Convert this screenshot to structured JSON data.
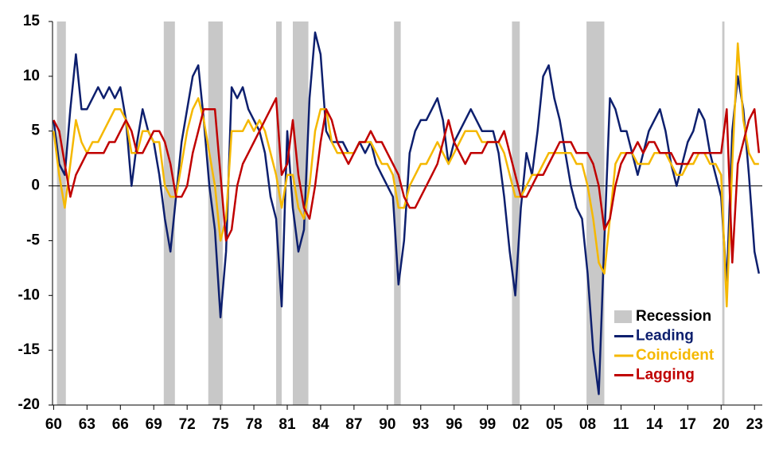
{
  "chart_data": {
    "type": "line",
    "x": [
      1960,
      1960.5,
      1961,
      1961.5,
      1962,
      1962.5,
      1963,
      1963.5,
      1964,
      1964.5,
      1965,
      1965.5,
      1966,
      1966.5,
      1967,
      1967.5,
      1968,
      1968.5,
      1969,
      1969.5,
      1970,
      1970.5,
      1971,
      1971.5,
      1972,
      1972.5,
      1973,
      1973.5,
      1974,
      1974.5,
      1975,
      1975.5,
      1976,
      1976.5,
      1977,
      1977.5,
      1978,
      1978.5,
      1979,
      1979.5,
      1980,
      1980.5,
      1981,
      1981.5,
      1982,
      1982.5,
      1983,
      1983.5,
      1984,
      1984.5,
      1985,
      1985.5,
      1986,
      1986.5,
      1987,
      1987.5,
      1988,
      1988.5,
      1989,
      1989.5,
      1990,
      1990.5,
      1991,
      1991.5,
      1992,
      1992.5,
      1993,
      1993.5,
      1994,
      1994.5,
      1995,
      1995.5,
      1996,
      1996.5,
      1997,
      1997.5,
      1998,
      1998.5,
      1999,
      1999.5,
      2000,
      2000.5,
      2001,
      2001.5,
      2002,
      2002.5,
      2003,
      2003.5,
      2004,
      2004.5,
      2005,
      2005.5,
      2006,
      2006.5,
      2007,
      2007.5,
      2008,
      2008.5,
      2009,
      2009.5,
      2010,
      2010.5,
      2011,
      2011.5,
      2012,
      2012.5,
      2013,
      2013.5,
      2014,
      2014.5,
      2015,
      2015.5,
      2016,
      2016.5,
      2017,
      2017.5,
      2018,
      2018.5,
      2019,
      2019.5,
      2020,
      2020.5,
      2021,
      2021.5,
      2022,
      2022.5,
      2023,
      2023.4
    ],
    "series": [
      {
        "name": "Leading",
        "color": "#0d1f6e",
        "values": [
          6,
          2,
          1,
          7,
          12,
          7,
          7,
          8,
          9,
          8,
          9,
          8,
          9,
          6,
          0,
          4,
          7,
          5,
          4,
          1,
          -3,
          -6,
          -1,
          4,
          7,
          10,
          11,
          6,
          0,
          -4,
          -12,
          -6,
          9,
          8,
          9,
          7,
          6,
          5,
          3,
          -1,
          -3,
          -11,
          5,
          -2,
          -6,
          -4,
          8,
          14,
          12,
          5,
          4,
          4,
          4,
          3,
          3,
          4,
          3,
          4,
          2,
          1,
          0,
          -1,
          -9,
          -5,
          3,
          5,
          6,
          6,
          7,
          8,
          6,
          2,
          4,
          5,
          6,
          7,
          6,
          5,
          5,
          5,
          3,
          -1,
          -6,
          -10,
          -2,
          3,
          1,
          5,
          10,
          11,
          8,
          6,
          3,
          0,
          -2,
          -3,
          -8,
          -15,
          -19,
          -5,
          8,
          7,
          5,
          5,
          3,
          1,
          3,
          5,
          6,
          7,
          5,
          2,
          0,
          2,
          4,
          5,
          7,
          6,
          3,
          1,
          -1,
          -9,
          5,
          10,
          7,
          1,
          -6,
          -8
        ]
      },
      {
        "name": "Coincident",
        "color": "#f5b800",
        "values": [
          5,
          1,
          -2,
          2,
          6,
          4,
          3,
          4,
          4,
          5,
          6,
          7,
          7,
          6,
          3,
          3,
          5,
          5,
          4,
          4,
          0,
          -1,
          -1,
          2,
          5,
          7,
          8,
          6,
          3,
          0,
          -5,
          -3,
          5,
          5,
          5,
          6,
          5,
          6,
          5,
          3,
          1,
          -2,
          1,
          1,
          -2,
          -3,
          0,
          5,
          7,
          7,
          4,
          3,
          3,
          3,
          3,
          4,
          4,
          4,
          3,
          2,
          2,
          1,
          -2,
          -2,
          0,
          1,
          2,
          2,
          3,
          4,
          3,
          2,
          3,
          4,
          5,
          5,
          5,
          4,
          4,
          4,
          4,
          3,
          1,
          -1,
          -1,
          0,
          1,
          1,
          2,
          3,
          3,
          3,
          3,
          3,
          2,
          2,
          0,
          -3,
          -7,
          -8,
          -3,
          2,
          3,
          3,
          3,
          2,
          2,
          2,
          3,
          3,
          3,
          2,
          1,
          1,
          2,
          2,
          3,
          3,
          2,
          2,
          1,
          -11,
          2,
          13,
          6,
          3,
          2,
          2
        ]
      },
      {
        "name": "Lagging",
        "color": "#c00000",
        "values": [
          6,
          5,
          2,
          -1,
          1,
          2,
          3,
          3,
          3,
          3,
          4,
          4,
          5,
          6,
          5,
          3,
          3,
          4,
          5,
          5,
          4,
          2,
          -1,
          -1,
          0,
          3,
          5,
          7,
          7,
          7,
          1,
          -5,
          -4,
          0,
          2,
          3,
          4,
          5,
          6,
          7,
          8,
          1,
          2,
          6,
          1,
          -2,
          -3,
          0,
          4,
          7,
          6,
          4,
          3,
          2,
          3,
          4,
          4,
          5,
          4,
          4,
          3,
          2,
          1,
          -1,
          -2,
          -2,
          -1,
          0,
          1,
          2,
          4,
          6,
          4,
          3,
          2,
          3,
          3,
          3,
          4,
          4,
          4,
          5,
          3,
          1,
          -1,
          -1,
          0,
          1,
          1,
          2,
          3,
          4,
          4,
          4,
          3,
          3,
          3,
          2,
          0,
          -4,
          -3,
          0,
          2,
          3,
          3,
          4,
          3,
          4,
          4,
          3,
          3,
          3,
          2,
          2,
          2,
          3,
          3,
          3,
          3,
          3,
          3,
          7,
          -7,
          2,
          4,
          6,
          7,
          3
        ]
      }
    ],
    "recession_label": "Recession",
    "recession_color": "#c8c8c8",
    "recessions": [
      [
        1960.3,
        1961.1
      ],
      [
        1969.9,
        1970.9
      ],
      [
        1973.9,
        1975.2
      ],
      [
        1980.0,
        1980.5
      ],
      [
        1981.5,
        1982.9
      ],
      [
        1990.6,
        1991.2
      ],
      [
        2001.2,
        2001.9
      ],
      [
        2007.9,
        2009.5
      ],
      [
        2020.1,
        2020.3
      ]
    ],
    "xlim": [
      1959.9,
      2023.7
    ],
    "xticks": [
      {
        "value": 1960,
        "label": "60"
      },
      {
        "value": 1963,
        "label": "63"
      },
      {
        "value": 1966,
        "label": "66"
      },
      {
        "value": 1969,
        "label": "69"
      },
      {
        "value": 1972,
        "label": "72"
      },
      {
        "value": 1975,
        "label": "75"
      },
      {
        "value": 1978,
        "label": "78"
      },
      {
        "value": 1981,
        "label": "81"
      },
      {
        "value": 1984,
        "label": "84"
      },
      {
        "value": 1987,
        "label": "87"
      },
      {
        "value": 1990,
        "label": "90"
      },
      {
        "value": 1993,
        "label": "93"
      },
      {
        "value": 1996,
        "label": "96"
      },
      {
        "value": 1999,
        "label": "99"
      },
      {
        "value": 2002,
        "label": "02"
      },
      {
        "value": 2005,
        "label": "05"
      },
      {
        "value": 2008,
        "label": "08"
      },
      {
        "value": 2011,
        "label": "11"
      },
      {
        "value": 2014,
        "label": "14"
      },
      {
        "value": 2017,
        "label": "17"
      },
      {
        "value": 2020,
        "label": "20"
      },
      {
        "value": 2023,
        "label": "23"
      }
    ],
    "ylim": [
      -20,
      15
    ],
    "yticks": [
      -20,
      -15,
      -10,
      -5,
      0,
      5,
      10,
      15
    ]
  }
}
